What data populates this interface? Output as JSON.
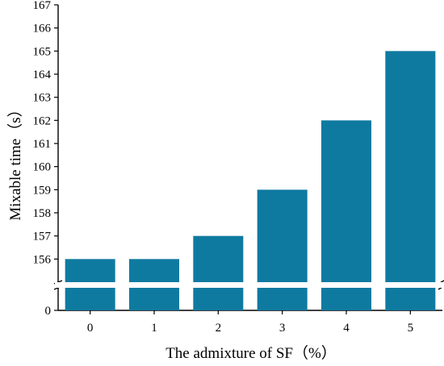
{
  "chart_data": {
    "type": "bar",
    "title": "",
    "xlabel": "The admixture of SF（%）",
    "ylabel": "Mixable time（s）",
    "categories": [
      "0",
      "1",
      "2",
      "3",
      "4",
      "5"
    ],
    "values": [
      156,
      156,
      157,
      159,
      162,
      165
    ],
    "ylim_upper": [
      155,
      167
    ],
    "ylim_lower": [
      0,
      1
    ],
    "axis_break": true,
    "y_ticks_upper": [
      "156",
      "157",
      "158",
      "159",
      "160",
      "161",
      "162",
      "163",
      "164",
      "165",
      "166",
      "167"
    ],
    "y_ticks_lower": [
      "0"
    ],
    "bar_color": "#0f7aa0",
    "grid": false,
    "legend": "none"
  }
}
